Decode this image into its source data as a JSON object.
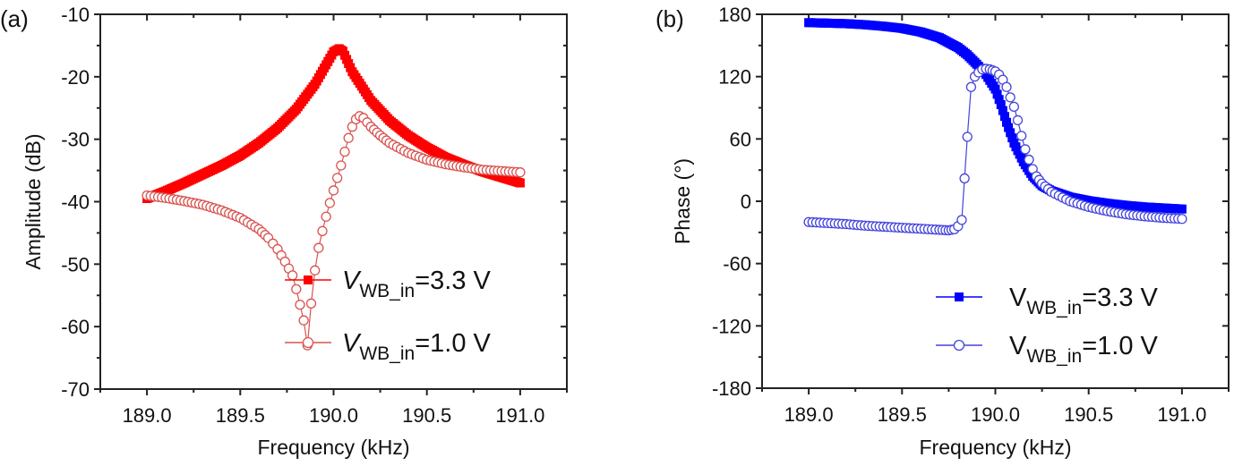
{
  "chart_data": [
    {
      "type": "scatter",
      "panel_label": "(a)",
      "title": "",
      "xlabel": "Frequency (kHz)",
      "ylabel": "Amplitude (dB)",
      "xlim": [
        188.75,
        191.25
      ],
      "ylim": [
        -70,
        -10
      ],
      "xticks": [
        189.0,
        189.5,
        190.0,
        190.5,
        191.0
      ],
      "xtick_labels": [
        "189.0",
        "189.5",
        "190.0",
        "190.5",
        "191.0"
      ],
      "yticks": [
        -70,
        -60,
        -50,
        -40,
        -30,
        -20,
        -10
      ],
      "ytick_labels": [
        "-70",
        "-60",
        "-50",
        "-40",
        "-30",
        "-20",
        "-10"
      ],
      "grid": false,
      "legend_position": "bottom-right",
      "series": [
        {
          "name": "V_WB_in=3.3 V",
          "legend_main": "V",
          "legend_sub": "WB_in",
          "legend_rest": "=3.3 V",
          "legend_italic": true,
          "marker": "filled-square",
          "color": "#ff0000",
          "x": [
            189.0,
            189.1,
            189.2,
            189.3,
            189.4,
            189.5,
            189.6,
            189.7,
            189.8,
            189.9,
            189.95,
            190.0,
            190.03,
            190.05,
            190.1,
            190.2,
            190.3,
            190.4,
            190.5,
            190.6,
            190.7,
            190.8,
            190.9,
            191.0
          ],
          "y": [
            -39.5,
            -38.3,
            -37.0,
            -35.6,
            -34.2,
            -32.6,
            -30.6,
            -28.2,
            -25.2,
            -21.2,
            -18.6,
            -16.0,
            -15.5,
            -15.9,
            -19.2,
            -23.8,
            -27.0,
            -29.4,
            -31.3,
            -32.9,
            -34.1,
            -35.2,
            -36.1,
            -37.0
          ]
        },
        {
          "name": "V_WB_in=1.0 V",
          "legend_main": "V",
          "legend_sub": "WB_in",
          "legend_rest": "=1.0 V",
          "legend_italic": true,
          "marker": "open-circle",
          "color": "#d9534f",
          "x": [
            189.0,
            189.1,
            189.2,
            189.3,
            189.4,
            189.5,
            189.6,
            189.65,
            189.7,
            189.74,
            189.78,
            189.8,
            189.82,
            189.84,
            189.86,
            189.88,
            189.9,
            189.92,
            189.94,
            189.96,
            189.98,
            190.0,
            190.02,
            190.04,
            190.06,
            190.08,
            190.1,
            190.12,
            190.14,
            190.16,
            190.2,
            190.25,
            190.3,
            190.4,
            190.5,
            190.6,
            190.7,
            190.8,
            190.9,
            191.0
          ],
          "y": [
            -39.0,
            -39.4,
            -39.9,
            -40.5,
            -41.4,
            -42.6,
            -44.4,
            -45.8,
            -47.6,
            -49.6,
            -51.8,
            -54.0,
            -56.5,
            -59.0,
            -63.0,
            -56.3,
            -51.0,
            -47.4,
            -44.7,
            -42.4,
            -40.2,
            -38.2,
            -36.2,
            -34.2,
            -32.0,
            -29.8,
            -28.0,
            -26.8,
            -26.3,
            -26.6,
            -28.0,
            -29.4,
            -30.6,
            -32.2,
            -33.3,
            -34.0,
            -34.5,
            -34.9,
            -35.1,
            -35.3
          ]
        }
      ]
    },
    {
      "type": "scatter",
      "panel_label": "(b)",
      "title": "",
      "xlabel": "Frequency (kHz)",
      "ylabel": "Phase (°)",
      "xlim": [
        188.75,
        191.25
      ],
      "ylim": [
        -180,
        180
      ],
      "xticks": [
        189.0,
        189.5,
        190.0,
        190.5,
        191.0
      ],
      "xtick_labels": [
        "189.0",
        "189.5",
        "190.0",
        "190.5",
        "191.0"
      ],
      "yticks": [
        -180,
        -120,
        -60,
        0,
        60,
        120,
        180
      ],
      "ytick_labels": [
        "-180",
        "-120",
        "-60",
        "0",
        "60",
        "120",
        "180"
      ],
      "grid": false,
      "legend_position": "bottom-right",
      "series": [
        {
          "name": "V_WB_in=3.3 V",
          "legend_main": "V",
          "legend_sub": "WB_in",
          "legend_rest": "=3.3 V",
          "legend_italic": false,
          "marker": "filled-square",
          "color": "#0000ff",
          "x": [
            189.0,
            189.1,
            189.2,
            189.3,
            189.4,
            189.5,
            189.6,
            189.7,
            189.8,
            189.85,
            189.9,
            189.95,
            190.0,
            190.03,
            190.06,
            190.1,
            190.15,
            190.2,
            190.25,
            190.3,
            190.4,
            190.5,
            190.6,
            190.7,
            190.8,
            190.9,
            191.0
          ],
          "y": [
            172,
            171.5,
            171,
            170,
            168.5,
            166.5,
            163,
            157.5,
            148,
            141,
            132,
            122,
            108,
            93,
            76,
            56,
            38,
            24,
            15,
            10,
            4,
            0.5,
            -2,
            -4,
            -5.5,
            -6.5,
            -7.5
          ]
        },
        {
          "name": "V_WB_in=1.0 V",
          "legend_main": "V",
          "legend_sub": "WB_in",
          "legend_rest": "=1.0 V",
          "legend_italic": false,
          "marker": "open-circle",
          "color": "#4444dd",
          "x": [
            189.0,
            189.1,
            189.2,
            189.3,
            189.4,
            189.5,
            189.6,
            189.7,
            189.75,
            189.78,
            189.8,
            189.82,
            189.85,
            189.87,
            189.89,
            189.91,
            189.93,
            189.95,
            189.97,
            190.0,
            190.02,
            190.04,
            190.06,
            190.08,
            190.1,
            190.12,
            190.14,
            190.16,
            190.18,
            190.2,
            190.22,
            190.25,
            190.3,
            190.4,
            190.5,
            190.6,
            190.7,
            190.8,
            190.9,
            191.0
          ],
          "y": [
            -20,
            -21,
            -22,
            -23.5,
            -24.5,
            -25.5,
            -26.5,
            -27.5,
            -28,
            -27,
            -24,
            -18,
            62,
            110,
            120,
            124,
            127,
            127.5,
            127,
            125,
            122,
            117,
            110,
            100,
            91,
            78,
            63,
            50,
            40,
            31,
            24,
            17,
            9,
            0,
            -5.5,
            -9.5,
            -12.5,
            -14.5,
            -16,
            -17
          ]
        }
      ]
    }
  ]
}
